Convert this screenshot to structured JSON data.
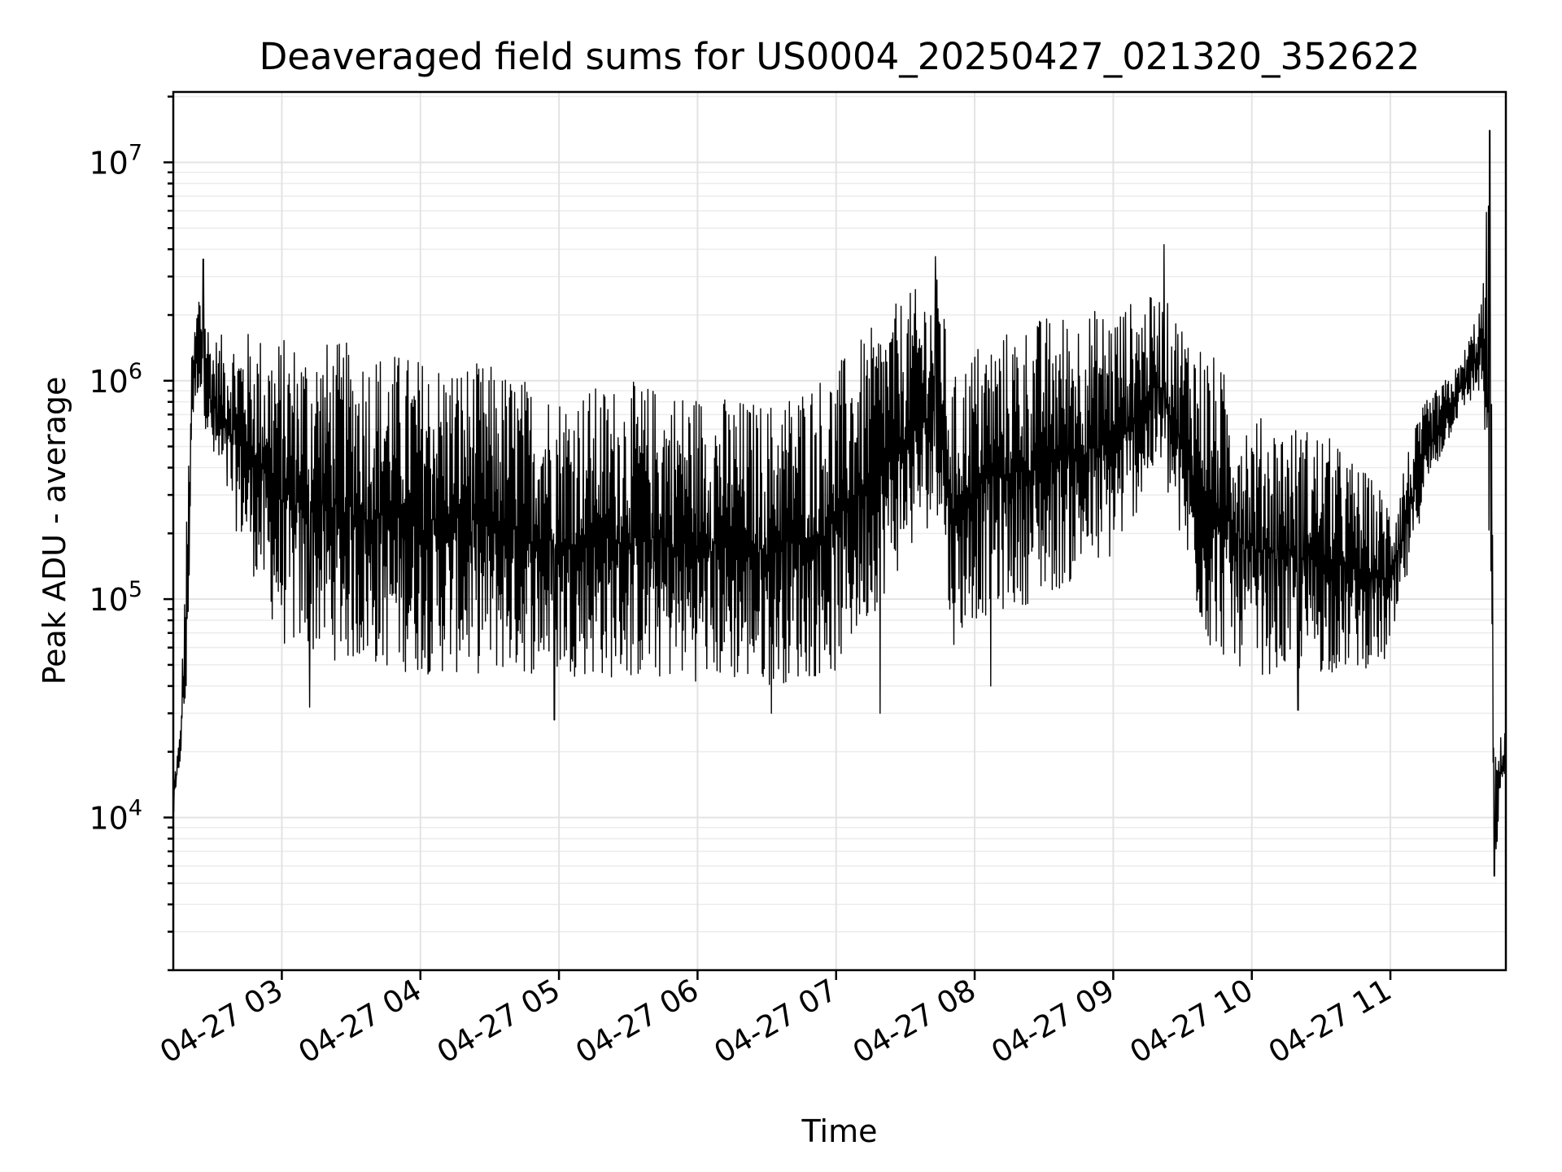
{
  "chart_data": {
    "type": "line",
    "title": "Deaveraged field sums for US0004_20250427_021320_352622",
    "xlabel": "Time",
    "ylabel": "Peak ADU - average",
    "yscale": "log",
    "ylim": [
      2000,
      21000000
    ],
    "xlim": [
      "2025-04-27 02:13",
      "2025-04-27 11:50"
    ],
    "grid": true,
    "x_ticks": [
      {
        "x": "2025-04-27 03:00",
        "label": "04-27 03"
      },
      {
        "x": "2025-04-27 04:00",
        "label": "04-27 04"
      },
      {
        "x": "2025-04-27 05:00",
        "label": "04-27 05"
      },
      {
        "x": "2025-04-27 06:00",
        "label": "04-27 06"
      },
      {
        "x": "2025-04-27 07:00",
        "label": "04-27 07"
      },
      {
        "x": "2025-04-27 08:00",
        "label": "04-27 08"
      },
      {
        "x": "2025-04-27 09:00",
        "label": "04-27 09"
      },
      {
        "x": "2025-04-27 10:00",
        "label": "04-27 10"
      },
      {
        "x": "2025-04-27 11:00",
        "label": "04-27 11"
      }
    ],
    "y_ticks": [
      {
        "y": 10000,
        "base": "10",
        "exp": "4"
      },
      {
        "y": 100000,
        "base": "10",
        "exp": "5"
      },
      {
        "y": 1000000,
        "base": "10",
        "exp": "6"
      },
      {
        "y": 10000000,
        "base": "10",
        "exp": "7"
      }
    ],
    "series": [
      {
        "color": "#000000",
        "envelope": [
          {
            "x": "2025-04-27 02:13",
            "low": 9500,
            "high": 15000
          },
          {
            "x": "2025-04-27 02:16",
            "low": 18000,
            "high": 25000
          },
          {
            "x": "2025-04-27 02:19",
            "low": 30000,
            "high": 300000
          },
          {
            "x": "2025-04-27 02:21",
            "low": 600000,
            "high": 1300000
          },
          {
            "x": "2025-04-27 02:24",
            "low": 900000,
            "high": 2800000
          },
          {
            "x": "2025-04-27 02:30",
            "low": 400000,
            "high": 1600000
          },
          {
            "x": "2025-04-27 02:45",
            "low": 150000,
            "high": 1700000
          },
          {
            "x": "2025-04-27 03:00",
            "low": 60000,
            "high": 1600000
          },
          {
            "x": "2025-04-27 03:30",
            "low": 50000,
            "high": 1500000
          },
          {
            "x": "2025-04-27 04:00",
            "low": 45000,
            "high": 1300000
          },
          {
            "x": "2025-04-27 04:30",
            "low": 45000,
            "high": 1200000
          },
          {
            "x": "2025-04-27 05:00",
            "low": 45000,
            "high": 900000
          },
          {
            "x": "2025-04-27 05:30",
            "low": 42000,
            "high": 1000000
          },
          {
            "x": "2025-04-27 06:00",
            "low": 42000,
            "high": 900000
          },
          {
            "x": "2025-04-27 06:30",
            "low": 40000,
            "high": 800000
          },
          {
            "x": "2025-04-27 07:00",
            "low": 45000,
            "high": 1200000
          },
          {
            "x": "2025-04-27 07:30",
            "low": 150000,
            "high": 2500000
          },
          {
            "x": "2025-04-27 07:45",
            "low": 250000,
            "high": 3000000
          },
          {
            "x": "2025-04-27 07:50",
            "low": 60000,
            "high": 1000000
          },
          {
            "x": "2025-04-27 08:00",
            "low": 80000,
            "high": 1500000
          },
          {
            "x": "2025-04-27 08:30",
            "low": 100000,
            "high": 2000000
          },
          {
            "x": "2025-04-27 09:00",
            "low": 150000,
            "high": 2200000
          },
          {
            "x": "2025-04-27 09:20",
            "low": 400000,
            "high": 2500000
          },
          {
            "x": "2025-04-27 09:40",
            "low": 60000,
            "high": 1500000
          },
          {
            "x": "2025-04-27 10:00",
            "low": 45000,
            "high": 700000
          },
          {
            "x": "2025-04-27 10:30",
            "low": 45000,
            "high": 600000
          },
          {
            "x": "2025-04-27 11:00",
            "low": 50000,
            "high": 300000
          },
          {
            "x": "2025-04-27 11:15",
            "low": 300000,
            "high": 800000
          },
          {
            "x": "2025-04-27 11:30",
            "low": 700000,
            "high": 1200000
          },
          {
            "x": "2025-04-27 11:40",
            "low": 900000,
            "high": 2500000
          },
          {
            "x": "2025-04-27 11:43",
            "low": 40000,
            "high": 14000000
          },
          {
            "x": "2025-04-27 11:45",
            "low": 5500,
            "high": 20000
          },
          {
            "x": "2025-04-27 11:50",
            "low": 18000,
            "high": 27000
          }
        ],
        "spikes": [
          {
            "x": "2025-04-27 02:26",
            "y": 3600000
          },
          {
            "x": "2025-04-27 03:12",
            "y": 32000
          },
          {
            "x": "2025-04-27 04:58",
            "y": 28000
          },
          {
            "x": "2025-04-27 06:32",
            "y": 30000
          },
          {
            "x": "2025-04-27 07:19",
            "y": 30000
          },
          {
            "x": "2025-04-27 07:43",
            "y": 3700000
          },
          {
            "x": "2025-04-27 08:07",
            "y": 40000
          },
          {
            "x": "2025-04-27 09:22",
            "y": 4200000
          },
          {
            "x": "2025-04-27 10:20",
            "y": 31000
          },
          {
            "x": "2025-04-27 11:43",
            "y": 14000000
          },
          {
            "x": "2025-04-27 11:45",
            "y": 5400
          }
        ]
      }
    ]
  }
}
